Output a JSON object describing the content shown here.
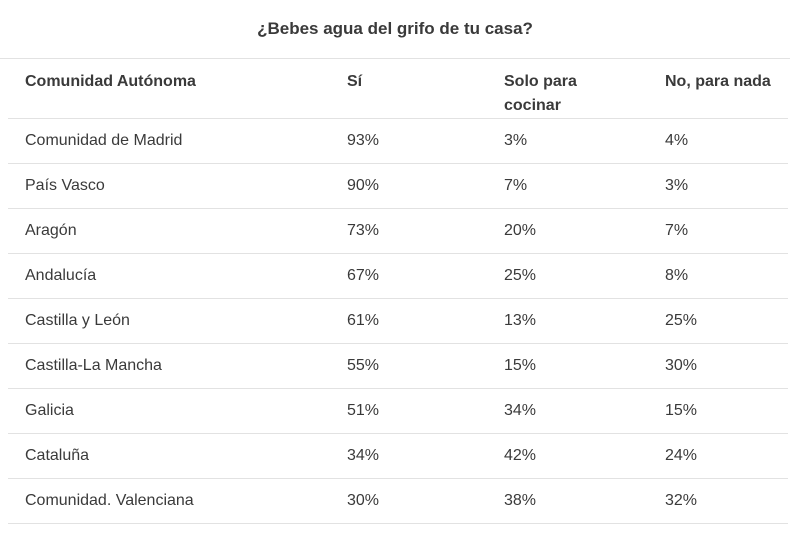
{
  "caption": "¿Bebes agua del grifo de tu casa?",
  "headers": [
    "Comunidad Autónoma",
    "Sí",
    "Solo para cocinar",
    "No, para nada"
  ],
  "rows": [
    [
      "Comunidad de Madrid",
      "93%",
      "3%",
      "4%"
    ],
    [
      "País Vasco",
      "90%",
      "7%",
      "3%"
    ],
    [
      "Aragón",
      "73%",
      "20%",
      "7%"
    ],
    [
      "Andalucía",
      "67%",
      "25%",
      "8%"
    ],
    [
      "Castilla y León",
      "61%",
      "13%",
      "25%"
    ],
    [
      "Castilla-La Mancha",
      "55%",
      "15%",
      "30%"
    ],
    [
      "Galicia",
      "51%",
      "34%",
      "15%"
    ],
    [
      "Cataluña",
      "34%",
      "42%",
      "24%"
    ],
    [
      "Comunidad. Valenciana",
      "30%",
      "38%",
      "32%"
    ]
  ]
}
